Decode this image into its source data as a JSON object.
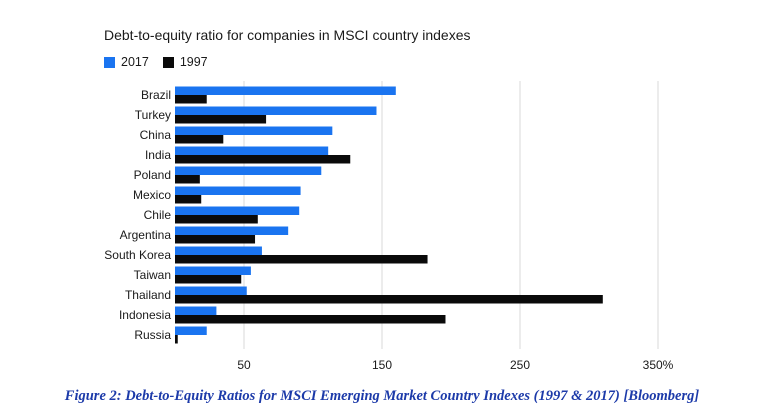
{
  "chart_data": {
    "type": "bar",
    "orientation": "horizontal",
    "title": "Debt-to-equity ratio for companies in MSCI country indexes",
    "categories": [
      "Brazil",
      "Turkey",
      "China",
      "India",
      "Poland",
      "Mexico",
      "Chile",
      "Argentina",
      "South Korea",
      "Taiwan",
      "Thailand",
      "Indonesia",
      "Russia"
    ],
    "series": [
      {
        "name": "2017",
        "color": "#1a74f0",
        "values": [
          160,
          146,
          114,
          111,
          106,
          91,
          90,
          82,
          63,
          55,
          52,
          30,
          23
        ]
      },
      {
        "name": "1997",
        "color": "#0a0a0a",
        "values": [
          23,
          66,
          35,
          127,
          18,
          19,
          60,
          58,
          183,
          48,
          310,
          196,
          2
        ]
      }
    ],
    "xlim": [
      0,
      350
    ],
    "xticks": [
      {
        "value": 50,
        "label": "50"
      },
      {
        "value": 150,
        "label": "150"
      },
      {
        "value": 250,
        "label": "250"
      },
      {
        "value": 350,
        "label": "350%"
      }
    ],
    "grid": true,
    "legend_position": "top-left"
  },
  "caption": "Figure 2:  Debt-to-Equity Ratios for MSCI Emerging Market Country Indexes (1997 & 2017) [Bloomberg]"
}
